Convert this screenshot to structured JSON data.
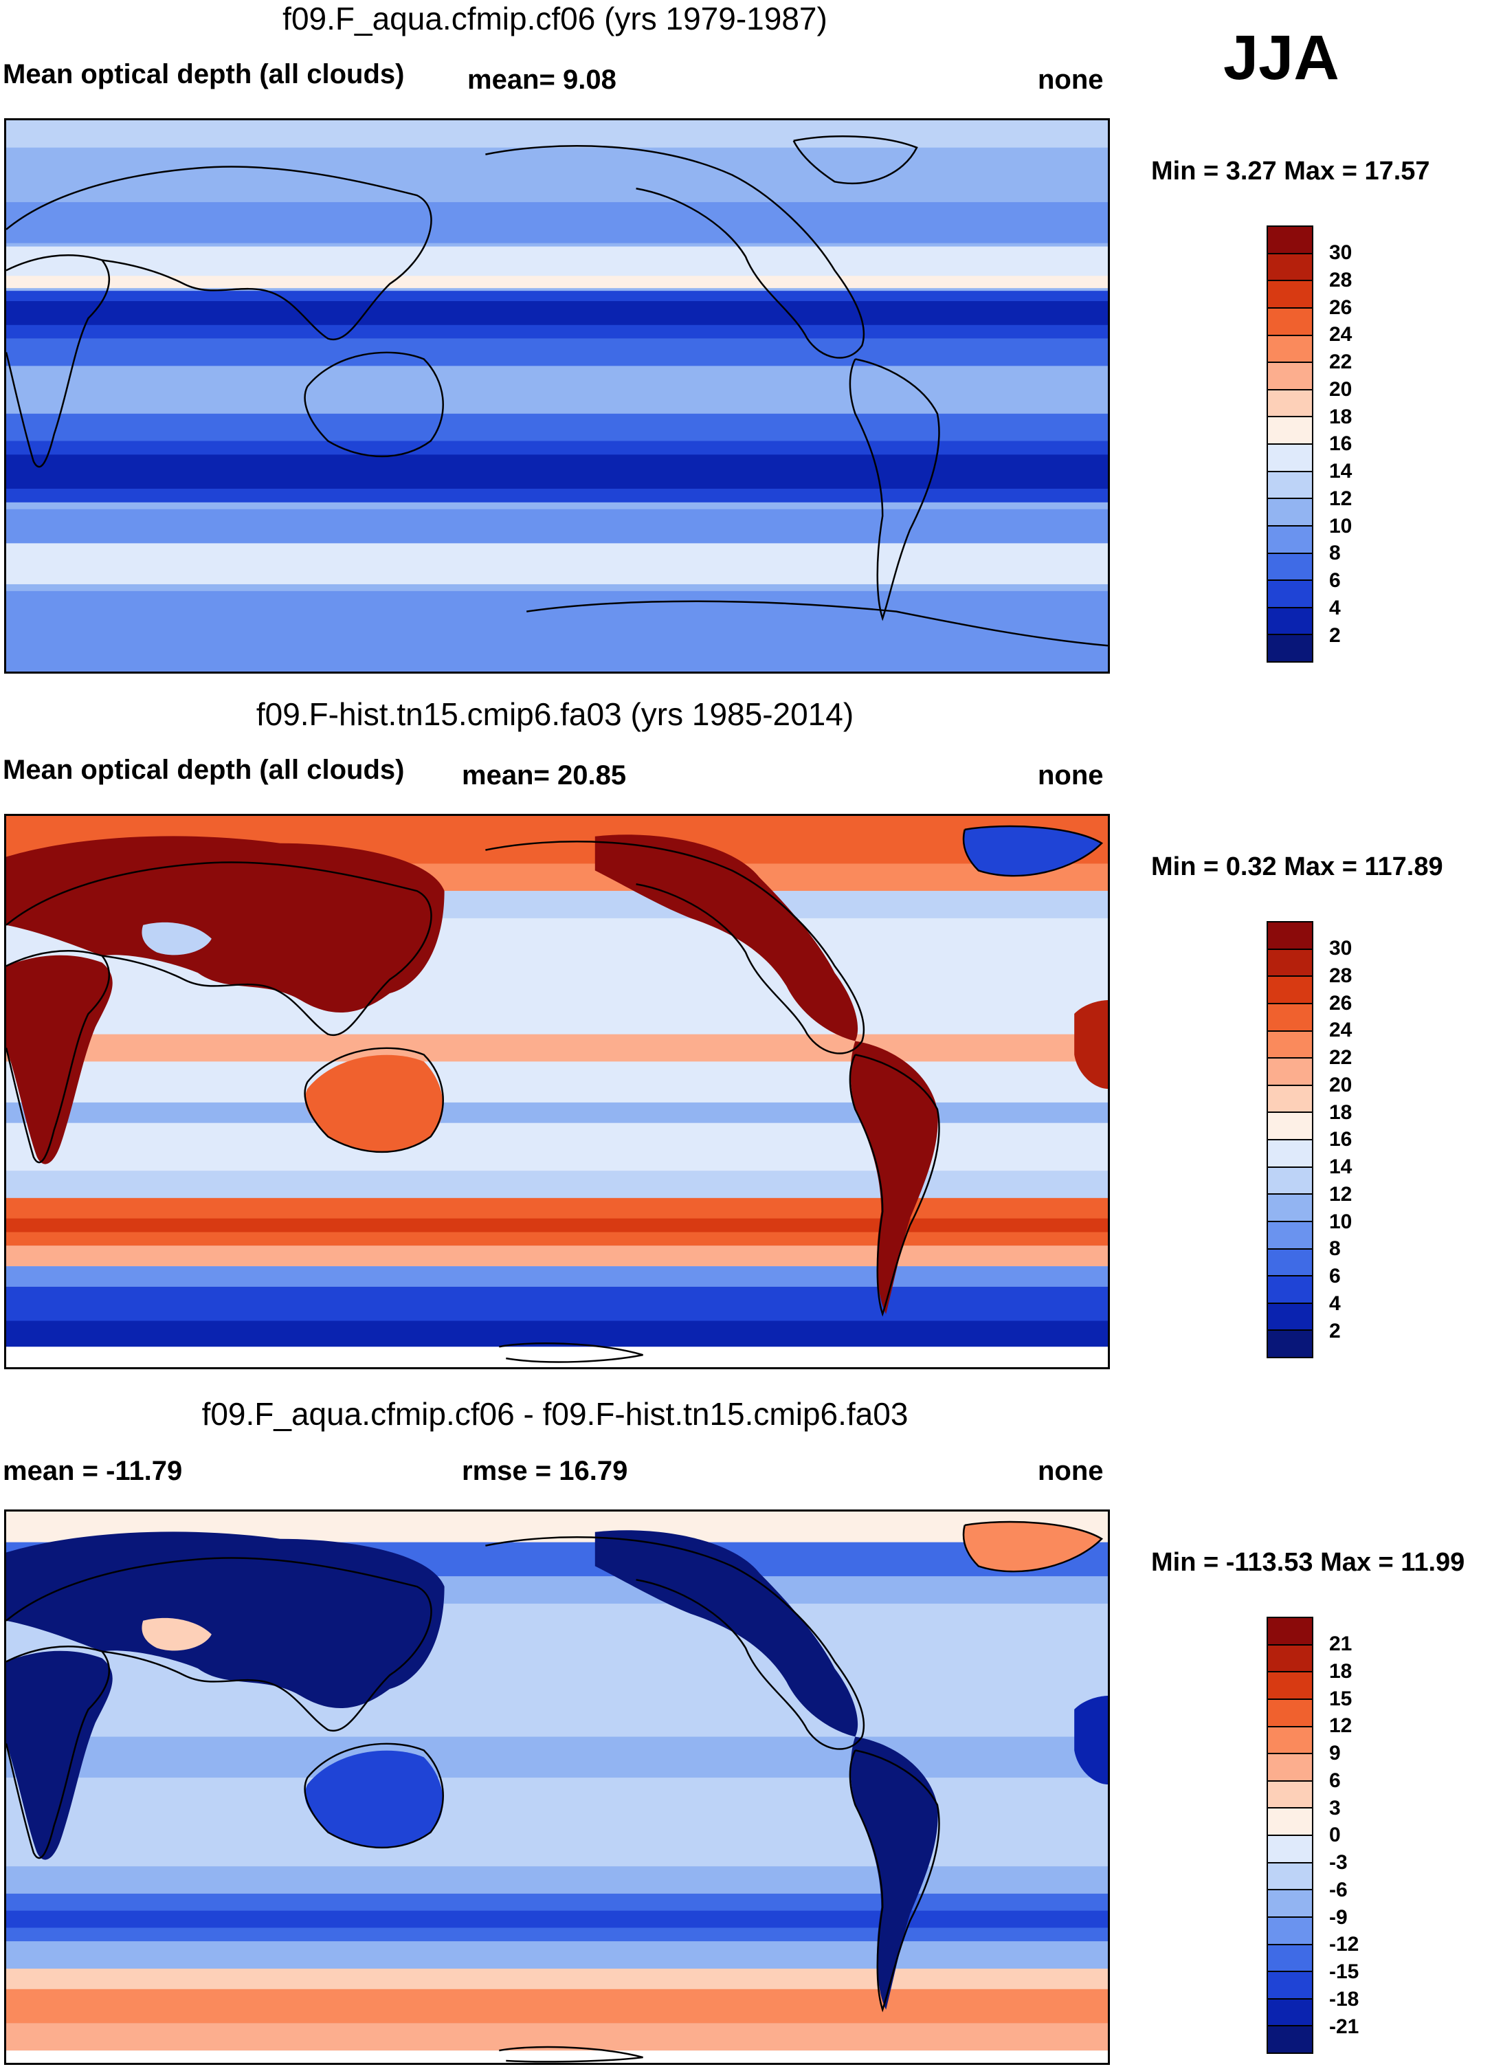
{
  "season": "JJA",
  "panels": [
    {
      "title": "f09.F_aqua.cfmip.cf06 (yrs 1979-1987)",
      "left_label": "Mean optical depth (all clouds)",
      "stat_label": "mean=   9.08",
      "right_label": "none",
      "minmax": "Min =   3.27 Max =  17.57",
      "colorbar": {
        "labels": [
          "30",
          "28",
          "26",
          "24",
          "22",
          "20",
          "18",
          "16",
          "14",
          "12",
          "10",
          "8",
          "6",
          "4",
          "2"
        ],
        "colors": [
          "#8b0a0a",
          "#b5200c",
          "#d83a12",
          "#f0612e",
          "#fa8a5c",
          "#fcae8e",
          "#fdd0b8",
          "#fdf0e6",
          "#dfeafb",
          "#bdd3f7",
          "#92b4f2",
          "#6a93ef",
          "#3f6be6",
          "#1f44d6",
          "#0a23b0",
          "#081679"
        ]
      }
    },
    {
      "title": "f09.F-hist.tn15.cmip6.fa03 (yrs 1985-2014)",
      "left_label": "Mean optical depth (all clouds)",
      "stat_label": "mean=  20.85",
      "right_label": "none",
      "minmax": "Min =   0.32 Max = 117.89",
      "colorbar": {
        "labels": [
          "30",
          "28",
          "26",
          "24",
          "22",
          "20",
          "18",
          "16",
          "14",
          "12",
          "10",
          "8",
          "6",
          "4",
          "2"
        ],
        "colors": [
          "#8b0a0a",
          "#b5200c",
          "#d83a12",
          "#f0612e",
          "#fa8a5c",
          "#fcae8e",
          "#fdd0b8",
          "#fdf0e6",
          "#dfeafb",
          "#bdd3f7",
          "#92b4f2",
          "#6a93ef",
          "#3f6be6",
          "#1f44d6",
          "#0a23b0",
          "#081679"
        ]
      }
    },
    {
      "title": "f09.F_aqua.cfmip.cf06 - f09.F-hist.tn15.cmip6.fa03",
      "left_label": "mean = -11.79",
      "stat_label": "rmse =  16.79",
      "right_label": "none",
      "minmax": "Min = -113.53 Max =  11.99",
      "colorbar": {
        "labels": [
          "21",
          "18",
          "15",
          "12",
          "9",
          "6",
          "3",
          "0",
          "-3",
          "-6",
          "-9",
          "-12",
          "-15",
          "-18",
          "-21"
        ],
        "colors": [
          "#8b0a0a",
          "#b5200c",
          "#d83a12",
          "#f0612e",
          "#fa8a5c",
          "#fcae8e",
          "#fdd0b8",
          "#fdf0e6",
          "#dfeafb",
          "#bdd3f7",
          "#92b4f2",
          "#6a93ef",
          "#3f6be6",
          "#1f44d6",
          "#0a23b0",
          "#081679"
        ]
      }
    }
  ]
}
